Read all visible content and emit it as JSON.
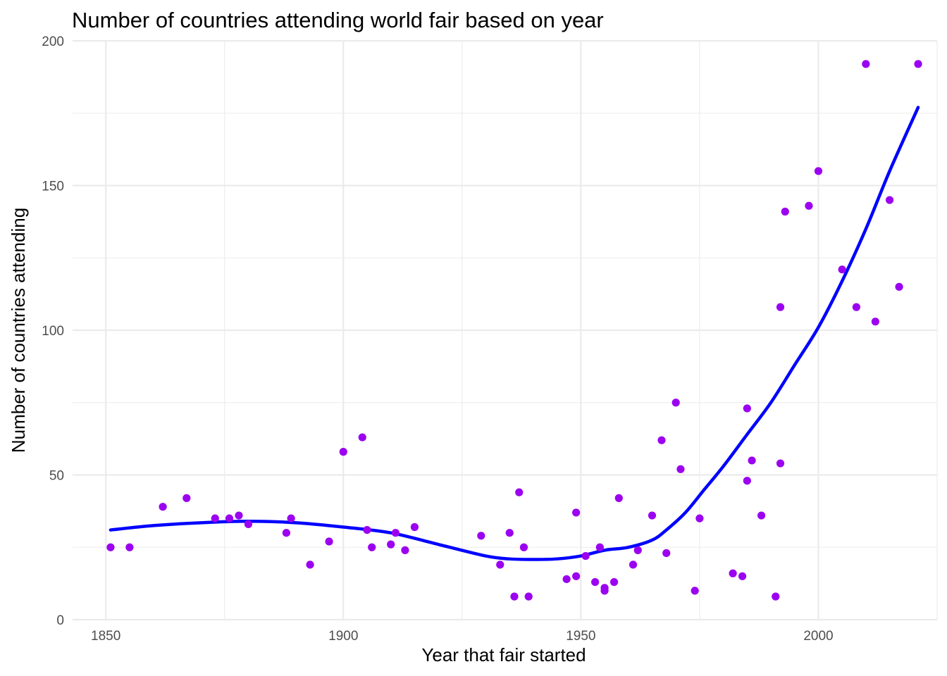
{
  "chart_data": {
    "type": "scatter",
    "title": "Number of countries attending world fair based on year",
    "xlabel": "Year that fair started",
    "ylabel": "Number of countries attending",
    "xlim": [
      1843,
      2025
    ],
    "ylim": [
      0,
      200
    ],
    "x_ticks": [
      1850,
      1900,
      1950,
      2000
    ],
    "y_ticks": [
      0,
      50,
      100,
      150,
      200
    ],
    "x_minor_ticks": [
      1875,
      1925,
      1975,
      2025
    ],
    "y_minor_ticks": [
      25,
      75,
      125,
      175
    ],
    "grid": true,
    "point_color": "#9B00F0",
    "line_color": "#0000FF",
    "points": [
      {
        "x": 1851,
        "y": 25
      },
      {
        "x": 1855,
        "y": 25
      },
      {
        "x": 1862,
        "y": 39
      },
      {
        "x": 1867,
        "y": 42
      },
      {
        "x": 1873,
        "y": 35
      },
      {
        "x": 1876,
        "y": 35
      },
      {
        "x": 1878,
        "y": 36
      },
      {
        "x": 1880,
        "y": 33
      },
      {
        "x": 1888,
        "y": 30
      },
      {
        "x": 1889,
        "y": 35
      },
      {
        "x": 1893,
        "y": 19
      },
      {
        "x": 1897,
        "y": 27
      },
      {
        "x": 1900,
        "y": 58
      },
      {
        "x": 1904,
        "y": 63
      },
      {
        "x": 1905,
        "y": 31
      },
      {
        "x": 1906,
        "y": 25
      },
      {
        "x": 1910,
        "y": 26
      },
      {
        "x": 1911,
        "y": 30
      },
      {
        "x": 1913,
        "y": 24
      },
      {
        "x": 1915,
        "y": 32
      },
      {
        "x": 1929,
        "y": 29
      },
      {
        "x": 1933,
        "y": 19
      },
      {
        "x": 1935,
        "y": 30
      },
      {
        "x": 1936,
        "y": 8
      },
      {
        "x": 1937,
        "y": 44
      },
      {
        "x": 1938,
        "y": 25
      },
      {
        "x": 1939,
        "y": 8
      },
      {
        "x": 1947,
        "y": 14
      },
      {
        "x": 1949,
        "y": 15
      },
      {
        "x": 1949,
        "y": 37
      },
      {
        "x": 1951,
        "y": 22
      },
      {
        "x": 1953,
        "y": 13
      },
      {
        "x": 1954,
        "y": 25
      },
      {
        "x": 1955,
        "y": 11
      },
      {
        "x": 1955,
        "y": 10
      },
      {
        "x": 1957,
        "y": 13
      },
      {
        "x": 1958,
        "y": 42
      },
      {
        "x": 1961,
        "y": 19
      },
      {
        "x": 1962,
        "y": 24
      },
      {
        "x": 1965,
        "y": 36
      },
      {
        "x": 1967,
        "y": 62
      },
      {
        "x": 1968,
        "y": 23
      },
      {
        "x": 1970,
        "y": 75
      },
      {
        "x": 1971,
        "y": 52
      },
      {
        "x": 1974,
        "y": 10
      },
      {
        "x": 1975,
        "y": 35
      },
      {
        "x": 1982,
        "y": 16
      },
      {
        "x": 1984,
        "y": 15
      },
      {
        "x": 1985,
        "y": 73
      },
      {
        "x": 1985,
        "y": 48
      },
      {
        "x": 1986,
        "y": 55
      },
      {
        "x": 1988,
        "y": 36
      },
      {
        "x": 1991,
        "y": 8
      },
      {
        "x": 1992,
        "y": 54
      },
      {
        "x": 1992,
        "y": 108
      },
      {
        "x": 1993,
        "y": 141
      },
      {
        "x": 1998,
        "y": 143
      },
      {
        "x": 2000,
        "y": 155
      },
      {
        "x": 2005,
        "y": 121
      },
      {
        "x": 2008,
        "y": 108
      },
      {
        "x": 2010,
        "y": 192
      },
      {
        "x": 2012,
        "y": 103
      },
      {
        "x": 2015,
        "y": 145
      },
      {
        "x": 2017,
        "y": 115
      },
      {
        "x": 2021,
        "y": 192
      }
    ],
    "smooth": [
      {
        "x": 1851,
        "y": 31
      },
      {
        "x": 1860,
        "y": 32.5
      },
      {
        "x": 1870,
        "y": 33.5
      },
      {
        "x": 1880,
        "y": 34
      },
      {
        "x": 1890,
        "y": 33.5
      },
      {
        "x": 1900,
        "y": 32
      },
      {
        "x": 1910,
        "y": 30
      },
      {
        "x": 1920,
        "y": 26
      },
      {
        "x": 1930,
        "y": 22
      },
      {
        "x": 1935,
        "y": 21
      },
      {
        "x": 1940,
        "y": 20.8
      },
      {
        "x": 1945,
        "y": 21
      },
      {
        "x": 1950,
        "y": 22
      },
      {
        "x": 1955,
        "y": 24
      },
      {
        "x": 1960,
        "y": 25
      },
      {
        "x": 1965,
        "y": 27.5
      },
      {
        "x": 1968,
        "y": 31
      },
      {
        "x": 1972,
        "y": 37
      },
      {
        "x": 1976,
        "y": 45
      },
      {
        "x": 1980,
        "y": 53
      },
      {
        "x": 1985,
        "y": 64
      },
      {
        "x": 1990,
        "y": 75
      },
      {
        "x": 1995,
        "y": 88
      },
      {
        "x": 2000,
        "y": 101
      },
      {
        "x": 2005,
        "y": 117
      },
      {
        "x": 2010,
        "y": 135
      },
      {
        "x": 2015,
        "y": 155
      },
      {
        "x": 2021,
        "y": 177
      }
    ]
  }
}
